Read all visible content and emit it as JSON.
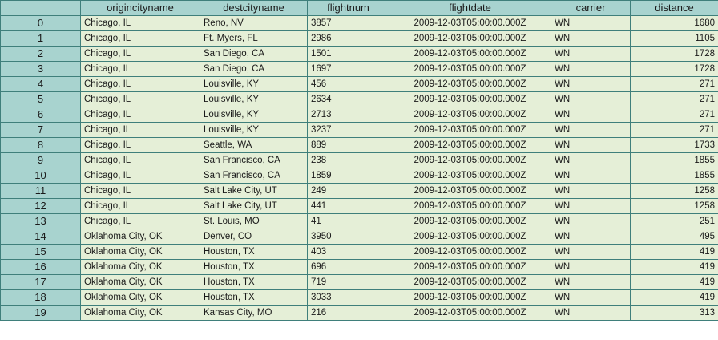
{
  "columns": [
    "",
    "origincityname",
    "destcityname",
    "flightnum",
    "flightdate",
    "carrier",
    "distance"
  ],
  "rows": [
    {
      "index": "0",
      "origin": "Chicago, IL",
      "dest": "Reno, NV",
      "flightnum": "3857",
      "flightdate": "2009-12-03T05:00:00.000Z",
      "carrier": "WN",
      "distance": "1680"
    },
    {
      "index": "1",
      "origin": "Chicago, IL",
      "dest": "Ft. Myers, FL",
      "flightnum": "2986",
      "flightdate": "2009-12-03T05:00:00.000Z",
      "carrier": "WN",
      "distance": "1105"
    },
    {
      "index": "2",
      "origin": "Chicago, IL",
      "dest": "San Diego, CA",
      "flightnum": "1501",
      "flightdate": "2009-12-03T05:00:00.000Z",
      "carrier": "WN",
      "distance": "1728"
    },
    {
      "index": "3",
      "origin": "Chicago, IL",
      "dest": "San Diego, CA",
      "flightnum": "1697",
      "flightdate": "2009-12-03T05:00:00.000Z",
      "carrier": "WN",
      "distance": "1728"
    },
    {
      "index": "4",
      "origin": "Chicago, IL",
      "dest": "Louisville, KY",
      "flightnum": "456",
      "flightdate": "2009-12-03T05:00:00.000Z",
      "carrier": "WN",
      "distance": "271"
    },
    {
      "index": "5",
      "origin": "Chicago, IL",
      "dest": "Louisville, KY",
      "flightnum": "2634",
      "flightdate": "2009-12-03T05:00:00.000Z",
      "carrier": "WN",
      "distance": "271"
    },
    {
      "index": "6",
      "origin": "Chicago, IL",
      "dest": "Louisville, KY",
      "flightnum": "2713",
      "flightdate": "2009-12-03T05:00:00.000Z",
      "carrier": "WN",
      "distance": "271"
    },
    {
      "index": "7",
      "origin": "Chicago, IL",
      "dest": "Louisville, KY",
      "flightnum": "3237",
      "flightdate": "2009-12-03T05:00:00.000Z",
      "carrier": "WN",
      "distance": "271"
    },
    {
      "index": "8",
      "origin": "Chicago, IL",
      "dest": "Seattle, WA",
      "flightnum": "889",
      "flightdate": "2009-12-03T05:00:00.000Z",
      "carrier": "WN",
      "distance": "1733"
    },
    {
      "index": "9",
      "origin": "Chicago, IL",
      "dest": "San Francisco, CA",
      "flightnum": "238",
      "flightdate": "2009-12-03T05:00:00.000Z",
      "carrier": "WN",
      "distance": "1855"
    },
    {
      "index": "10",
      "origin": "Chicago, IL",
      "dest": "San Francisco, CA",
      "flightnum": "1859",
      "flightdate": "2009-12-03T05:00:00.000Z",
      "carrier": "WN",
      "distance": "1855"
    },
    {
      "index": "11",
      "origin": "Chicago, IL",
      "dest": "Salt Lake City, UT",
      "flightnum": "249",
      "flightdate": "2009-12-03T05:00:00.000Z",
      "carrier": "WN",
      "distance": "1258"
    },
    {
      "index": "12",
      "origin": "Chicago, IL",
      "dest": "Salt Lake City, UT",
      "flightnum": "441",
      "flightdate": "2009-12-03T05:00:00.000Z",
      "carrier": "WN",
      "distance": "1258"
    },
    {
      "index": "13",
      "origin": "Chicago, IL",
      "dest": "St. Louis, MO",
      "flightnum": "41",
      "flightdate": "2009-12-03T05:00:00.000Z",
      "carrier": "WN",
      "distance": "251"
    },
    {
      "index": "14",
      "origin": "Oklahoma City, OK",
      "dest": "Denver, CO",
      "flightnum": "3950",
      "flightdate": "2009-12-03T05:00:00.000Z",
      "carrier": "WN",
      "distance": "495"
    },
    {
      "index": "15",
      "origin": "Oklahoma City, OK",
      "dest": "Houston, TX",
      "flightnum": "403",
      "flightdate": "2009-12-03T05:00:00.000Z",
      "carrier": "WN",
      "distance": "419"
    },
    {
      "index": "16",
      "origin": "Oklahoma City, OK",
      "dest": "Houston, TX",
      "flightnum": "696",
      "flightdate": "2009-12-03T05:00:00.000Z",
      "carrier": "WN",
      "distance": "419"
    },
    {
      "index": "17",
      "origin": "Oklahoma City, OK",
      "dest": "Houston, TX",
      "flightnum": "719",
      "flightdate": "2009-12-03T05:00:00.000Z",
      "carrier": "WN",
      "distance": "419"
    },
    {
      "index": "18",
      "origin": "Oklahoma City, OK",
      "dest": "Houston, TX",
      "flightnum": "3033",
      "flightdate": "2009-12-03T05:00:00.000Z",
      "carrier": "WN",
      "distance": "419"
    },
    {
      "index": "19",
      "origin": "Oklahoma City, OK",
      "dest": "Kansas City, MO",
      "flightnum": "216",
      "flightdate": "2009-12-03T05:00:00.000Z",
      "carrier": "WN",
      "distance": "313"
    }
  ],
  "colors": {
    "header_bg": "#a8d3cf",
    "cell_bg": "#e5efd7",
    "border": "#3f7f7b"
  }
}
